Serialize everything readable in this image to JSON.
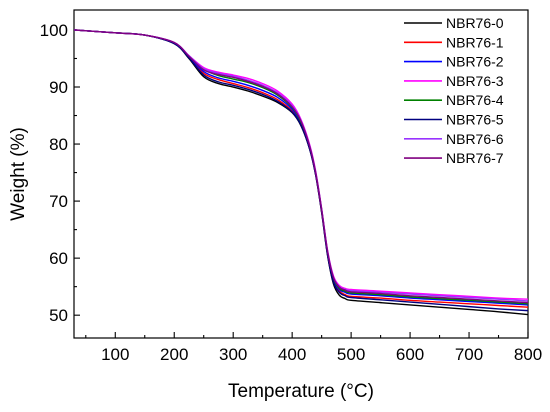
{
  "chart_data": {
    "type": "line",
    "xlabel": "Temperature (°C)",
    "ylabel": "Weight (%)",
    "xlim": [
      30,
      800
    ],
    "ylim": [
      46,
      103.5
    ],
    "x_ticks": [
      100,
      200,
      300,
      400,
      500,
      600,
      700,
      800
    ],
    "y_ticks": [
      50,
      60,
      70,
      80,
      90,
      100
    ],
    "grid": false,
    "legend_position": "top-right",
    "x": [
      30,
      100,
      150,
      200,
      225,
      250,
      275,
      300,
      325,
      350,
      375,
      400,
      415,
      430,
      440,
      450,
      460,
      470,
      480,
      490,
      500,
      550,
      600,
      650,
      700,
      750,
      800
    ],
    "series": [
      {
        "name": "NBR76-0",
        "color": "#000000",
        "values": [
          100,
          99.5,
          99.1,
          97.6,
          95.0,
          91.8,
          90.6,
          90.0,
          89.3,
          88.4,
          87.3,
          85.5,
          83.2,
          79.0,
          74.5,
          68.0,
          60.5,
          55.5,
          53.5,
          52.9,
          52.6,
          52.2,
          51.8,
          51.4,
          51.0,
          50.6,
          50.1
        ]
      },
      {
        "name": "NBR76-1",
        "color": "#ff0000",
        "values": [
          100,
          99.5,
          99.1,
          97.7,
          95.2,
          92.4,
          91.3,
          90.6,
          89.9,
          89.0,
          87.8,
          85.8,
          83.4,
          79.1,
          74.6,
          68.2,
          60.8,
          56.0,
          54.2,
          53.6,
          53.3,
          53.0,
          52.6,
          52.3,
          52.0,
          51.7,
          51.4
        ]
      },
      {
        "name": "NBR76-2",
        "color": "#0000ff",
        "values": [
          100,
          99.5,
          99.1,
          97.7,
          95.3,
          92.7,
          91.6,
          91.0,
          90.3,
          89.4,
          88.2,
          86.1,
          83.6,
          79.3,
          74.8,
          68.4,
          61.0,
          56.3,
          54.5,
          54.0,
          53.7,
          53.4,
          53.0,
          52.7,
          52.4,
          52.1,
          51.8
        ]
      },
      {
        "name": "NBR76-3",
        "color": "#ff00ff",
        "values": [
          100,
          99.5,
          99.1,
          97.8,
          95.5,
          93.4,
          92.6,
          92.1,
          91.5,
          90.6,
          89.3,
          87.0,
          84.3,
          79.8,
          75.2,
          68.7,
          61.4,
          56.9,
          55.2,
          54.7,
          54.5,
          54.2,
          53.9,
          53.6,
          53.3,
          53.0,
          52.8
        ]
      },
      {
        "name": "NBR76-4",
        "color": "#008000",
        "values": [
          100,
          99.5,
          99.1,
          97.7,
          95.4,
          93.1,
          92.0,
          91.4,
          90.8,
          89.9,
          88.6,
          86.4,
          83.8,
          79.4,
          74.9,
          68.5,
          61.1,
          56.5,
          54.7,
          54.2,
          53.9,
          53.6,
          53.2,
          52.9,
          52.6,
          52.3,
          52.0
        ]
      },
      {
        "name": "NBR76-5",
        "color": "#000080",
        "values": [
          100,
          99.5,
          99.1,
          97.6,
          95.1,
          92.1,
          90.9,
          90.3,
          89.6,
          88.7,
          87.5,
          85.6,
          83.3,
          79.0,
          74.5,
          68.1,
          60.6,
          55.8,
          54.0,
          53.4,
          53.1,
          52.7,
          52.3,
          51.9,
          51.5,
          51.1,
          50.8
        ]
      },
      {
        "name": "NBR76-6",
        "color": "#9933ff",
        "values": [
          100,
          99.5,
          99.1,
          97.8,
          95.5,
          93.2,
          92.4,
          91.9,
          91.2,
          90.3,
          89.0,
          86.7,
          84.1,
          79.6,
          75.0,
          68.6,
          61.3,
          56.7,
          55.0,
          54.5,
          54.3,
          54.0,
          53.7,
          53.4,
          53.1,
          52.8,
          52.5
        ]
      },
      {
        "name": "NBR76-7",
        "color": "#800080",
        "values": [
          100,
          99.5,
          99.1,
          97.8,
          95.4,
          93.0,
          92.2,
          91.7,
          91.0,
          90.1,
          88.8,
          86.5,
          84.0,
          79.5,
          74.9,
          68.5,
          61.2,
          56.6,
          54.9,
          54.4,
          54.1,
          53.8,
          53.4,
          53.1,
          52.8,
          52.5,
          52.2
        ]
      }
    ]
  }
}
